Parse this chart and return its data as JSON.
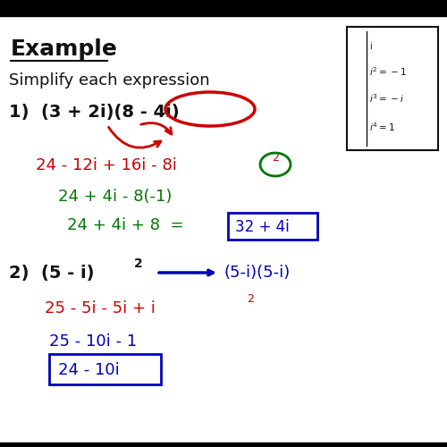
{
  "bg_color": "#ffffff",
  "colors": {
    "black": "#111111",
    "red": "#cc0000",
    "green": "#007700",
    "blue": "#0000bb",
    "box_border": "#111111"
  },
  "layout": {
    "xlim": [
      0,
      500
    ],
    "ylim": [
      0,
      500
    ],
    "fig_w": 5.0,
    "fig_h": 5.0,
    "dpi": 100
  }
}
